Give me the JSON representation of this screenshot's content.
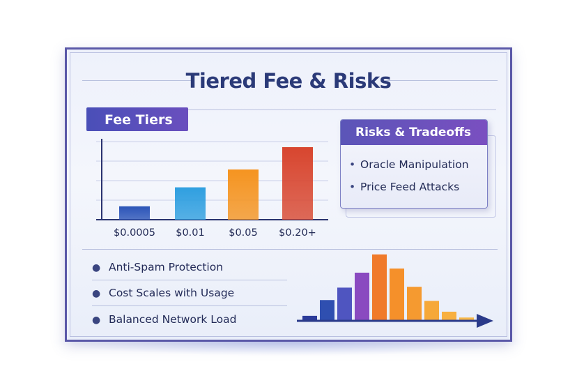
{
  "title": "Tiered Fee & Risks",
  "fee_tiers": {
    "header": "Fee Tiers"
  },
  "risks": {
    "header": "Risks & Tradeoffs",
    "items": [
      "Oracle Manipulation",
      "Price Feed Attacks"
    ]
  },
  "benefits": [
    "Anti-Spam Protection",
    "Cost Scales with Usage",
    "Balanced Network Load"
  ],
  "chart_data": [
    {
      "type": "bar",
      "categories": [
        "$0.0005",
        "$0.01",
        "$0.05",
        "$0.20+"
      ],
      "values": [
        0.6,
        1.45,
        2.25,
        3.25
      ],
      "ylim": [
        0,
        3.5
      ],
      "colors": [
        "#2b54b8",
        "#2f9fe0",
        "#f59420",
        "#d8462f"
      ]
    },
    {
      "type": "bar",
      "values": [
        0.3,
        1.25,
        2.0,
        2.9,
        4.0,
        3.15,
        2.05,
        1.2,
        0.55,
        0.2
      ],
      "ylim": [
        0,
        4.2
      ],
      "colors": [
        "#2b3b9a",
        "#2f4fb0",
        "#4f55c0",
        "#8a4ac0",
        "#f07a2a",
        "#f5902a",
        "#f59a30",
        "#f6a838",
        "#f8b040",
        "#f8b84a"
      ]
    }
  ]
}
